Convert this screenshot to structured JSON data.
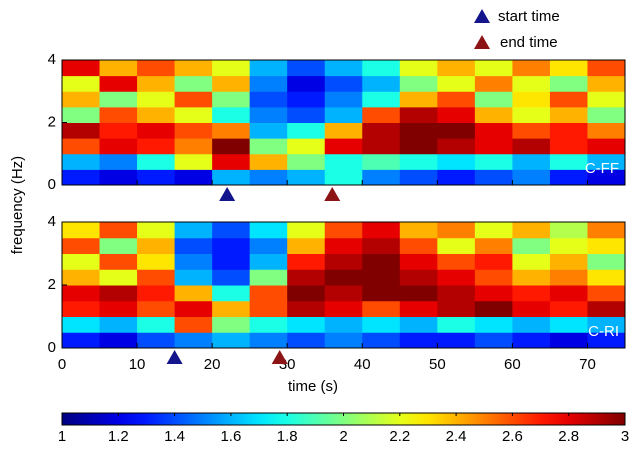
{
  "chart_data": [
    {
      "type": "heatmap",
      "label": "C-FF",
      "x_bins": [
        0,
        5,
        10,
        15,
        20,
        25,
        30,
        35,
        40,
        45,
        50,
        55,
        60,
        65,
        70,
        75
      ],
      "y_bins": [
        0,
        0.5,
        1,
        1.5,
        2,
        2.5,
        3,
        3.5,
        4
      ],
      "z": [
        [
          1.3,
          1.2,
          1.3,
          1.2,
          1.6,
          1.5,
          1.6,
          1.8,
          1.5,
          1.4,
          1.3,
          1.4,
          1.5,
          1.3,
          1.2
        ],
        [
          1.6,
          1.5,
          1.8,
          2.2,
          2.8,
          2.4,
          2.0,
          1.8,
          1.9,
          1.8,
          1.7,
          1.8,
          1.6,
          1.8,
          1.6
        ],
        [
          2.6,
          2.8,
          2.7,
          2.5,
          3.0,
          2.0,
          2.2,
          2.8,
          2.9,
          3.0,
          2.9,
          2.8,
          2.9,
          2.7,
          2.8
        ],
        [
          2.9,
          2.7,
          2.8,
          2.6,
          2.5,
          1.6,
          1.8,
          2.4,
          2.9,
          3.0,
          3.0,
          2.8,
          2.6,
          2.7,
          2.5
        ],
        [
          2.0,
          2.6,
          2.4,
          2.2,
          1.8,
          1.5,
          1.4,
          1.6,
          2.6,
          2.9,
          2.8,
          2.4,
          2.2,
          2.4,
          2.0
        ],
        [
          2.4,
          2.0,
          2.2,
          2.6,
          2.0,
          1.4,
          1.3,
          1.5,
          1.8,
          2.4,
          2.6,
          2.0,
          2.3,
          2.6,
          2.2
        ],
        [
          2.2,
          2.8,
          2.4,
          2.0,
          2.4,
          1.5,
          1.2,
          1.4,
          1.6,
          2.0,
          2.2,
          2.5,
          2.2,
          2.0,
          2.4
        ],
        [
          2.8,
          2.4,
          2.6,
          2.4,
          2.2,
          1.6,
          1.4,
          1.6,
          1.8,
          2.2,
          2.4,
          2.2,
          2.5,
          2.3,
          2.6
        ]
      ],
      "ylim": [
        0,
        4
      ],
      "yticks": [
        0,
        2,
        4
      ],
      "start_time": 22,
      "end_time": 36
    },
    {
      "type": "heatmap",
      "label": "C-RI",
      "x_bins": [
        0,
        5,
        10,
        15,
        20,
        25,
        30,
        35,
        40,
        45,
        50,
        55,
        60,
        65,
        70,
        75
      ],
      "y_bins": [
        0,
        0.5,
        1,
        1.5,
        2,
        2.5,
        3,
        3.5,
        4
      ],
      "z": [
        [
          1.3,
          1.2,
          1.4,
          1.5,
          1.6,
          1.5,
          1.4,
          1.5,
          1.4,
          1.3,
          1.3,
          1.4,
          1.3,
          1.2,
          1.3
        ],
        [
          1.7,
          1.6,
          1.8,
          2.6,
          2.0,
          1.8,
          1.7,
          1.6,
          1.7,
          1.6,
          1.8,
          1.7,
          1.6,
          1.7,
          1.6
        ],
        [
          2.7,
          2.8,
          2.6,
          2.8,
          2.4,
          2.6,
          2.9,
          2.8,
          2.6,
          2.8,
          2.9,
          3.0,
          2.8,
          2.7,
          2.9
        ],
        [
          2.8,
          2.9,
          2.7,
          2.4,
          1.8,
          2.6,
          3.0,
          2.9,
          3.0,
          3.0,
          2.9,
          2.8,
          2.7,
          2.8,
          2.6
        ],
        [
          2.4,
          2.2,
          2.6,
          1.6,
          1.4,
          2.0,
          2.9,
          3.0,
          3.0,
          2.9,
          2.8,
          2.6,
          2.4,
          2.5,
          2.3
        ],
        [
          2.2,
          2.6,
          2.3,
          1.5,
          1.3,
          1.6,
          2.7,
          2.9,
          3.0,
          2.8,
          2.6,
          2.7,
          2.2,
          2.4,
          2.0
        ],
        [
          2.6,
          2.0,
          2.4,
          1.4,
          1.3,
          1.5,
          2.4,
          2.8,
          2.9,
          2.6,
          2.2,
          2.5,
          2.0,
          2.2,
          2.3
        ],
        [
          2.3,
          2.6,
          2.2,
          1.6,
          1.4,
          1.7,
          2.2,
          2.6,
          2.8,
          2.4,
          2.5,
          2.2,
          2.4,
          2.1,
          2.5
        ]
      ],
      "ylim": [
        0,
        4
      ],
      "yticks": [
        0,
        2,
        4
      ],
      "start_time": 15,
      "end_time": 29
    }
  ],
  "xlim": [
    0,
    75
  ],
  "xticks": [
    0,
    10,
    20,
    30,
    40,
    50,
    60,
    70
  ],
  "xlabel": "time (s)",
  "ylabel": "frequency (Hz)",
  "colorbar": {
    "lim": [
      1,
      3
    ],
    "ticks": [
      1,
      1.2,
      1.4,
      1.6,
      1.8,
      2,
      2.2,
      2.4,
      2.6,
      2.8,
      3
    ]
  },
  "legend": [
    {
      "name": "start time",
      "color": "#14148c"
    },
    {
      "name": "end time",
      "color": "#8c1414"
    }
  ]
}
